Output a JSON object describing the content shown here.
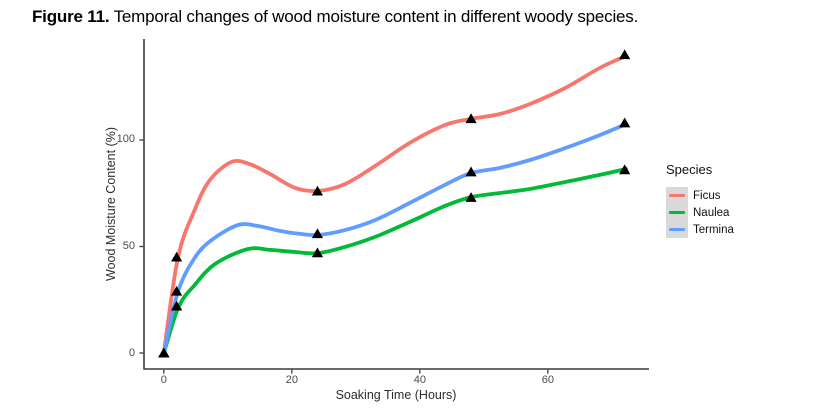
{
  "figure": {
    "label": "Figure 11.",
    "caption": " Temporal changes of wood moisture content in different woody species."
  },
  "chart_data": {
    "type": "line",
    "title": "",
    "xlabel": "Soaking Time (Hours)",
    "ylabel": "Wood Moisture Content (%)",
    "x_ticks": [
      0,
      20,
      40,
      60
    ],
    "y_ticks": [
      0,
      50,
      100
    ],
    "xlim": [
      -3.1,
      75.8
    ],
    "ylim": [
      -7.5,
      147.4
    ],
    "grid": false,
    "marker": "filled-triangle",
    "marker_color": "#000000",
    "axis_color": "#3a3a3a",
    "legend": {
      "title": "Species",
      "position": "right",
      "key_background": "#d9d9d9"
    },
    "series": [
      {
        "name": "Ficus",
        "color": "#F8766D",
        "points": [
          [
            0,
            0
          ],
          [
            2,
            45
          ],
          [
            24,
            76
          ],
          [
            48,
            110
          ],
          [
            72,
            140
          ]
        ],
        "curve": [
          [
            0,
            0
          ],
          [
            2.2,
            44.6
          ],
          [
            4.8,
            67.1
          ],
          [
            7.2,
            81.2
          ],
          [
            10.6,
            89.7
          ],
          [
            13.4,
            88.7
          ],
          [
            16.6,
            84.0
          ],
          [
            20.5,
            77.5
          ],
          [
            24.1,
            76.1
          ],
          [
            28.3,
            79.3
          ],
          [
            33.0,
            87.8
          ],
          [
            38.4,
            98.6
          ],
          [
            43.9,
            107.0
          ],
          [
            48.0,
            109.9
          ],
          [
            52.5,
            112.2
          ],
          [
            57.2,
            116.9
          ],
          [
            62.7,
            124.4
          ],
          [
            68.1,
            133.8
          ],
          [
            72.2,
            139.4
          ]
        ]
      },
      {
        "name": "Naulea",
        "color": "#00BA38",
        "points": [
          [
            0,
            0
          ],
          [
            2,
            22
          ],
          [
            24,
            47
          ],
          [
            48,
            73
          ],
          [
            72,
            86
          ]
        ],
        "curve": [
          [
            0,
            0
          ],
          [
            2.3,
            21.6
          ],
          [
            4.8,
            31.9
          ],
          [
            8.0,
            41.8
          ],
          [
            13.1,
            48.8
          ],
          [
            16.6,
            48.4
          ],
          [
            20.5,
            47.4
          ],
          [
            24.1,
            46.9
          ],
          [
            28.3,
            49.8
          ],
          [
            33.0,
            54.5
          ],
          [
            38.4,
            61.5
          ],
          [
            43.9,
            69.0
          ],
          [
            48.0,
            73.2
          ],
          [
            52.5,
            75.1
          ],
          [
            57.2,
            77.0
          ],
          [
            62.7,
            80.3
          ],
          [
            68.1,
            83.6
          ],
          [
            72.2,
            86.4
          ]
        ]
      },
      {
        "name": "Termina",
        "color": "#619CFF",
        "points": [
          [
            0,
            0
          ],
          [
            2,
            29
          ],
          [
            24,
            56
          ],
          [
            48,
            85
          ],
          [
            72,
            108
          ]
        ],
        "curve": [
          [
            0,
            0
          ],
          [
            2.2,
            28.6
          ],
          [
            4.8,
            44.6
          ],
          [
            7.5,
            53.1
          ],
          [
            11.6,
            60.1
          ],
          [
            14.7,
            59.6
          ],
          [
            18.1,
            57.3
          ],
          [
            21.3,
            55.9
          ],
          [
            24.1,
            55.4
          ],
          [
            28.3,
            57.7
          ],
          [
            33.0,
            62.4
          ],
          [
            38.4,
            70.4
          ],
          [
            43.9,
            78.9
          ],
          [
            48.0,
            84.5
          ],
          [
            52.5,
            86.9
          ],
          [
            57.2,
            90.6
          ],
          [
            62.7,
            96.2
          ],
          [
            68.1,
            102.3
          ],
          [
            72.2,
            107.5
          ]
        ]
      }
    ]
  }
}
